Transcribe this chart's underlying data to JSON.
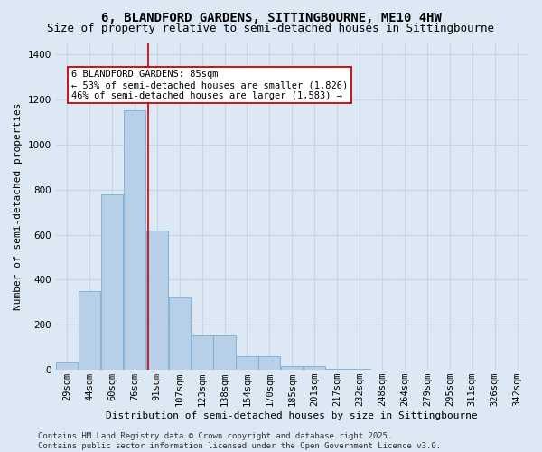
{
  "title": "6, BLANDFORD GARDENS, SITTINGBOURNE, ME10 4HW",
  "subtitle": "Size of property relative to semi-detached houses in Sittingbourne",
  "xlabel": "Distribution of semi-detached houses by size in Sittingbourne",
  "ylabel": "Number of semi-detached properties",
  "categories": [
    "29sqm",
    "44sqm",
    "60sqm",
    "76sqm",
    "91sqm",
    "107sqm",
    "123sqm",
    "138sqm",
    "154sqm",
    "170sqm",
    "185sqm",
    "201sqm",
    "217sqm",
    "232sqm",
    "248sqm",
    "264sqm",
    "279sqm",
    "295sqm",
    "311sqm",
    "326sqm",
    "342sqm"
  ],
  "values": [
    35,
    350,
    780,
    1150,
    620,
    320,
    155,
    155,
    60,
    60,
    15,
    15,
    5,
    5,
    0,
    0,
    0,
    0,
    0,
    0,
    0
  ],
  "bar_color": "#b8cfe8",
  "bar_edge_color": "#7aadd4",
  "grid_color": "#c8d4e4",
  "background_color": "#dce8f4",
  "vline_x_index": 3.6,
  "vline_color": "#cc0000",
  "annotation_text": "6 BLANDFORD GARDENS: 85sqm\n← 53% of semi-detached houses are smaller (1,826)\n46% of semi-detached houses are larger (1,583) →",
  "annotation_box_facecolor": "#ffffff",
  "annotation_box_edge": "#cc0000",
  "ylim": [
    0,
    1450
  ],
  "yticks": [
    0,
    200,
    400,
    600,
    800,
    1000,
    1200,
    1400
  ],
  "footer": "Contains HM Land Registry data © Crown copyright and database right 2025.\nContains public sector information licensed under the Open Government Licence v3.0.",
  "title_fontsize": 10,
  "subtitle_fontsize": 9,
  "axis_label_fontsize": 8,
  "tick_fontsize": 7.5,
  "annot_fontsize": 7.5,
  "footer_fontsize": 6.5
}
